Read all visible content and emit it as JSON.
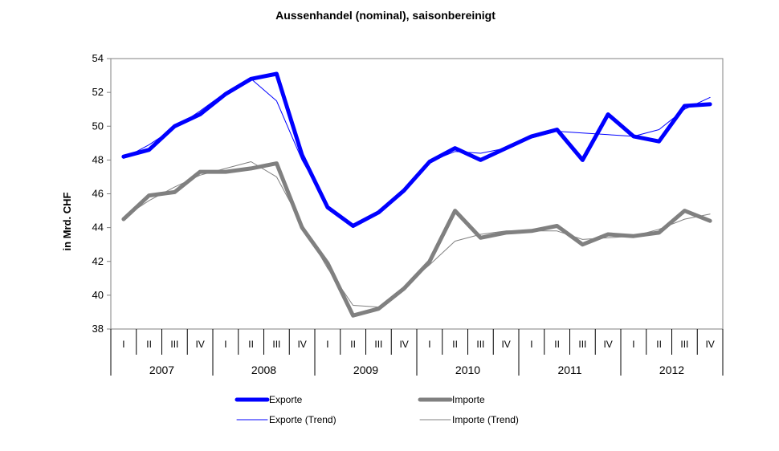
{
  "chart_data": {
    "type": "line",
    "title": "Aussenhandel (nominal), saisonbereinigt",
    "ylabel": "in Mrd. CHF",
    "ylim": [
      38,
      54
    ],
    "ytick_step": 2,
    "years": [
      "2007",
      "2008",
      "2009",
      "2010",
      "2011",
      "2012"
    ],
    "quarters": [
      "I",
      "II",
      "III",
      "IV"
    ],
    "grid": false,
    "legend_position": "bottom",
    "series": [
      {
        "name": "Exporte",
        "color": "#0000ff",
        "style": "thick",
        "values": [
          48.2,
          48.6,
          50.0,
          50.7,
          51.9,
          52.8,
          53.1,
          48.3,
          45.2,
          44.1,
          44.9,
          46.2,
          47.9,
          48.7,
          48.0,
          48.7,
          49.4,
          49.8,
          48.0,
          50.7,
          49.4,
          49.1,
          51.2,
          51.3
        ]
      },
      {
        "name": "Importe",
        "color": "#808080",
        "style": "thick",
        "values": [
          44.5,
          45.9,
          46.1,
          47.3,
          47.3,
          47.5,
          47.8,
          44.0,
          41.9,
          38.8,
          39.2,
          40.4,
          42.0,
          45.0,
          43.4,
          43.7,
          43.8,
          44.1,
          43.0,
          43.6,
          43.5,
          43.7,
          45.0,
          44.4
        ]
      },
      {
        "name": "Exporte (Trend)",
        "color": "#0000ff",
        "style": "thin",
        "values": [
          48.1,
          48.9,
          49.9,
          50.9,
          52.0,
          52.8,
          51.5,
          48.0,
          45.3,
          44.2,
          44.9,
          46.3,
          47.9,
          48.5,
          48.4,
          48.7,
          49.3,
          49.7,
          49.6,
          49.5,
          49.4,
          49.8,
          51.0,
          51.7
        ]
      },
      {
        "name": "Importe (Trend)",
        "color": "#808080",
        "style": "thin",
        "values": [
          44.6,
          45.6,
          46.4,
          47.1,
          47.5,
          47.9,
          47.0,
          44.2,
          41.6,
          39.4,
          39.3,
          40.5,
          41.8,
          43.2,
          43.6,
          43.8,
          43.8,
          43.8,
          43.3,
          43.4,
          43.5,
          43.9,
          44.5,
          44.8
        ]
      }
    ]
  }
}
